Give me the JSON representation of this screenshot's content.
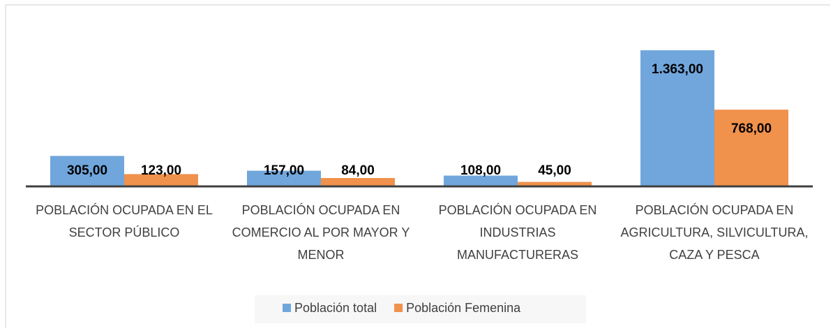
{
  "chart_data": {
    "type": "bar",
    "categories": [
      "POBLACIÓN OCUPADA EN EL SECTOR PÚBLICO",
      "POBLACIÓN OCUPADA EN COMERCIO AL POR MAYOR Y MENOR",
      "POBLACIÓN OCUPADA EN INDUSTRIAS MANUFACTURERAS",
      "POBLACIÓN OCUPADA EN AGRICULTURA, SILVICULTURA, CAZA Y PESCA"
    ],
    "series": [
      {
        "name": "Población total",
        "color": "#70a6dc",
        "values": [
          305,
          157,
          108,
          1363
        ],
        "value_labels": [
          "305,00",
          "157,00",
          "108,00",
          "1.363,00"
        ]
      },
      {
        "name": "Población Femenina",
        "color": "#f0914c",
        "values": [
          123,
          84,
          45,
          768
        ],
        "value_labels": [
          "123,00",
          "84,00",
          "45,00",
          "768,00"
        ]
      }
    ],
    "legend": "bottom"
  }
}
